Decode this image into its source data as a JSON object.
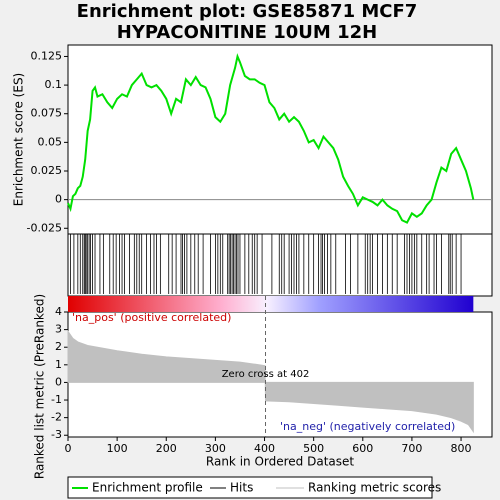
{
  "title": "Enrichment plot: GSE85871 MCF7\nHYPACONITINE 10UM 12H",
  "legend": [
    {
      "name": "Enrichment profile",
      "color": "#00e000"
    },
    {
      "name": "Hits",
      "color": "#000000"
    },
    {
      "name": "Ranking metric scores",
      "color": "#c0c0c0"
    }
  ],
  "chart_data": [
    {
      "type": "line",
      "ylabel": "Enrichment score (ES)",
      "ylim": [
        -0.03,
        0.135
      ],
      "yticks": [
        -0.025,
        0,
        0.025,
        0.05,
        0.075,
        0.1,
        0.125
      ],
      "x": [
        0,
        5,
        10,
        15,
        20,
        25,
        30,
        35,
        40,
        45,
        50,
        55,
        60,
        70,
        80,
        90,
        100,
        110,
        120,
        130,
        140,
        150,
        160,
        170,
        180,
        190,
        200,
        210,
        220,
        230,
        240,
        250,
        260,
        270,
        280,
        290,
        300,
        310,
        320,
        330,
        340,
        345,
        350,
        360,
        370,
        380,
        390,
        400,
        410,
        420,
        430,
        440,
        450,
        460,
        470,
        480,
        490,
        500,
        510,
        520,
        530,
        540,
        550,
        560,
        570,
        580,
        590,
        600,
        610,
        620,
        630,
        640,
        650,
        660,
        670,
        680,
        690,
        700,
        710,
        720,
        730,
        740,
        750,
        760,
        770,
        780,
        790,
        800,
        810,
        820,
        825
      ],
      "series": [
        {
          "name": "Enrichment profile",
          "color": "#00e000",
          "values": [
            -0.003,
            -0.008,
            0.003,
            0.005,
            0.01,
            0.012,
            0.02,
            0.035,
            0.06,
            0.07,
            0.095,
            0.098,
            0.09,
            0.092,
            0.085,
            0.08,
            0.088,
            0.092,
            0.09,
            0.1,
            0.105,
            0.11,
            0.1,
            0.098,
            0.1,
            0.095,
            0.088,
            0.075,
            0.088,
            0.085,
            0.105,
            0.1,
            0.107,
            0.1,
            0.098,
            0.088,
            0.072,
            0.068,
            0.075,
            0.1,
            0.115,
            0.125,
            0.12,
            0.108,
            0.105,
            0.105,
            0.102,
            0.1,
            0.085,
            0.08,
            0.07,
            0.075,
            0.068,
            0.072,
            0.068,
            0.06,
            0.05,
            0.052,
            0.045,
            0.055,
            0.05,
            0.045,
            0.035,
            0.02,
            0.012,
            0.005,
            -0.005,
            0.002,
            0,
            -0.002,
            -0.005,
            0,
            -0.005,
            -0.008,
            -0.01,
            -0.018,
            -0.02,
            -0.012,
            -0.015,
            -0.012,
            -0.005,
            0,
            0.015,
            0.028,
            0.025,
            0.04,
            0.045,
            0.035,
            0.025,
            0.01,
            0
          ]
        }
      ]
    },
    {
      "type": "rug",
      "color": "#000000",
      "hits": [
        5,
        12,
        20,
        25,
        30,
        33,
        35,
        37,
        40,
        43,
        46,
        50,
        55,
        65,
        72,
        85,
        92,
        98,
        105,
        110,
        115,
        125,
        135,
        140,
        145,
        150,
        160,
        168,
        175,
        180,
        188,
        205,
        212,
        220,
        230,
        233,
        237,
        242,
        250,
        258,
        265,
        275,
        290,
        300,
        305,
        310,
        315,
        325,
        328,
        331,
        334,
        337,
        340,
        343,
        346,
        350,
        360,
        368,
        375,
        380,
        385,
        395,
        415,
        430,
        435,
        440,
        450,
        455,
        460,
        465,
        470,
        480,
        490,
        500,
        510,
        515,
        518,
        522,
        528,
        535,
        545,
        565,
        575,
        590,
        605,
        610,
        615,
        620,
        630,
        640,
        650,
        660,
        670,
        685,
        690,
        695,
        700,
        705,
        710,
        720,
        730,
        735,
        745,
        750,
        760,
        775,
        778,
        782,
        790,
        800
      ]
    },
    {
      "type": "area",
      "color": "#c0c0c0",
      "ylabel": "Ranked list metric (PreRanked)",
      "xlabel": "Rank in Ordered Dataset",
      "pos_label": "'na_pos' (positive correlated)",
      "neg_label": "'na_neg' (negatively correlated)",
      "zero_cross": 402,
      "zero_label": "Zero cross at 402",
      "xlim": [
        0,
        863
      ],
      "xticks": [
        0,
        100,
        200,
        300,
        400,
        500,
        600,
        700,
        800
      ],
      "ylim": [
        -3.1,
        4
      ],
      "yticks": [
        -3,
        -2,
        -1,
        0,
        1,
        2,
        3,
        4
      ],
      "x": [
        0,
        10,
        20,
        40,
        60,
        100,
        150,
        200,
        250,
        300,
        350,
        390,
        401,
        402,
        450,
        500,
        550,
        600,
        650,
        700,
        750,
        780,
        800,
        815,
        825
      ],
      "values": [
        2.9,
        2.5,
        2.3,
        2.1,
        2.0,
        1.8,
        1.6,
        1.45,
        1.35,
        1.25,
        1.15,
        1.0,
        0.95,
        -1.05,
        -1.1,
        -1.2,
        -1.3,
        -1.4,
        -1.5,
        -1.6,
        -1.8,
        -2.0,
        -2.2,
        -2.4,
        -2.8
      ]
    }
  ]
}
